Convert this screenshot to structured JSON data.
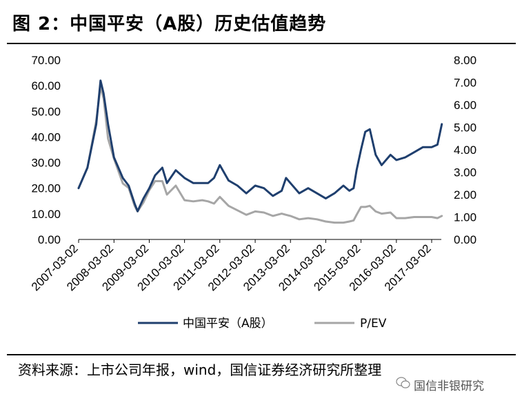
{
  "header": {
    "title": "图 2：中国平安（A股）历史估值趋势"
  },
  "footer": {
    "source": "资料来源：上市公司年报，wind，国信证券经济研究所整理",
    "watermark": "国信非银研究"
  },
  "chart_data": {
    "type": "line",
    "title": "图 2：中国平安（A股）历史估值趋势",
    "x_ticks": [
      "2007-03-02",
      "2008-03-02",
      "2009-03-02",
      "2010-03-02",
      "2011-03-02",
      "2012-03-02",
      "2013-03-02",
      "2014-03-02",
      "2015-03-02",
      "2016-03-02",
      "2017-03-02"
    ],
    "y_left": {
      "lim": [
        0,
        70
      ],
      "ticks": [
        "0.00",
        "10.00",
        "20.00",
        "30.00",
        "40.00",
        "50.00",
        "60.00",
        "70.00"
      ]
    },
    "y_right": {
      "lim": [
        0,
        8
      ],
      "ticks": [
        "0.00",
        "1.00",
        "2.00",
        "3.00",
        "4.00",
        "5.00",
        "6.00",
        "7.00",
        "8.00"
      ]
    },
    "grid": false,
    "legend_position": "bottom",
    "colors": {
      "primary": "#1f3f6e",
      "secondary": "#a6a6a6"
    },
    "series": [
      {
        "name": "中国平安（A股）",
        "axis": "left",
        "x": [
          "2007-03-02",
          "2007-06-01",
          "2007-09-01",
          "2007-10-15",
          "2007-11-15",
          "2008-01-01",
          "2008-03-02",
          "2008-06-01",
          "2008-08-01",
          "2008-10-01",
          "2008-11-01",
          "2009-01-01",
          "2009-03-02",
          "2009-05-01",
          "2009-07-15",
          "2009-09-01",
          "2009-12-01",
          "2010-03-02",
          "2010-06-01",
          "2010-09-01",
          "2010-11-01",
          "2011-01-01",
          "2011-03-02",
          "2011-06-01",
          "2011-09-01",
          "2011-12-01",
          "2012-03-02",
          "2012-06-01",
          "2012-09-01",
          "2012-12-01",
          "2013-01-15",
          "2013-03-02",
          "2013-06-01",
          "2013-09-01",
          "2013-12-01",
          "2014-03-02",
          "2014-06-01",
          "2014-09-01",
          "2014-11-01",
          "2014-12-15",
          "2015-01-15",
          "2015-03-02",
          "2015-04-15",
          "2015-06-01",
          "2015-08-01",
          "2015-10-01",
          "2016-01-01",
          "2016-03-02",
          "2016-06-01",
          "2016-09-01",
          "2016-12-01",
          "2017-03-02",
          "2017-05-01",
          "2017-06-15"
        ],
        "values": [
          20,
          28,
          45,
          62,
          57,
          45,
          32,
          24,
          21,
          14,
          11,
          16,
          20,
          25,
          28,
          22,
          27,
          24,
          22,
          22,
          22,
          24,
          29,
          23,
          21,
          18,
          21,
          20,
          17,
          19,
          24,
          22,
          18,
          20,
          18,
          16,
          18,
          21,
          19,
          20,
          27,
          35,
          42,
          43,
          33,
          29,
          33,
          31,
          32,
          34,
          36,
          36,
          37,
          45
        ]
      },
      {
        "name": "P/EV",
        "axis": "right",
        "x": [
          "2007-03-02",
          "2007-06-01",
          "2007-09-01",
          "2007-10-15",
          "2007-11-15",
          "2008-01-01",
          "2008-03-02",
          "2008-06-01",
          "2008-08-01",
          "2008-10-01",
          "2008-11-01",
          "2009-01-01",
          "2009-03-02",
          "2009-05-01",
          "2009-07-15",
          "2009-09-01",
          "2009-12-01",
          "2010-03-02",
          "2010-06-01",
          "2010-09-01",
          "2010-11-01",
          "2011-01-01",
          "2011-03-02",
          "2011-06-01",
          "2011-09-01",
          "2011-12-01",
          "2012-03-02",
          "2012-06-01",
          "2012-09-01",
          "2012-12-01",
          "2013-01-15",
          "2013-03-02",
          "2013-06-01",
          "2013-09-01",
          "2013-12-01",
          "2014-03-02",
          "2014-06-01",
          "2014-09-01",
          "2014-11-01",
          "2014-12-15",
          "2015-01-15",
          "2015-03-02",
          "2015-04-15",
          "2015-06-01",
          "2015-08-01",
          "2015-10-01",
          "2016-01-01",
          "2016-03-02",
          "2016-06-01",
          "2016-09-01",
          "2016-12-01",
          "2017-03-02",
          "2017-05-01",
          "2017-06-15"
        ],
        "values": [
          2.3,
          3.2,
          5.3,
          6.8,
          6.3,
          4.5,
          3.6,
          2.5,
          2.3,
          1.5,
          1.25,
          1.65,
          2.2,
          2.6,
          2.6,
          2.0,
          2.4,
          1.75,
          1.7,
          1.75,
          1.7,
          1.6,
          1.9,
          1.5,
          1.3,
          1.1,
          1.25,
          1.2,
          1.05,
          1.15,
          1.1,
          1.05,
          0.9,
          0.95,
          0.9,
          0.8,
          0.75,
          0.75,
          0.8,
          0.85,
          1.1,
          1.45,
          1.45,
          1.5,
          1.25,
          1.15,
          1.2,
          0.95,
          0.95,
          1.0,
          1.0,
          1.0,
          0.95,
          1.05
        ]
      }
    ]
  }
}
